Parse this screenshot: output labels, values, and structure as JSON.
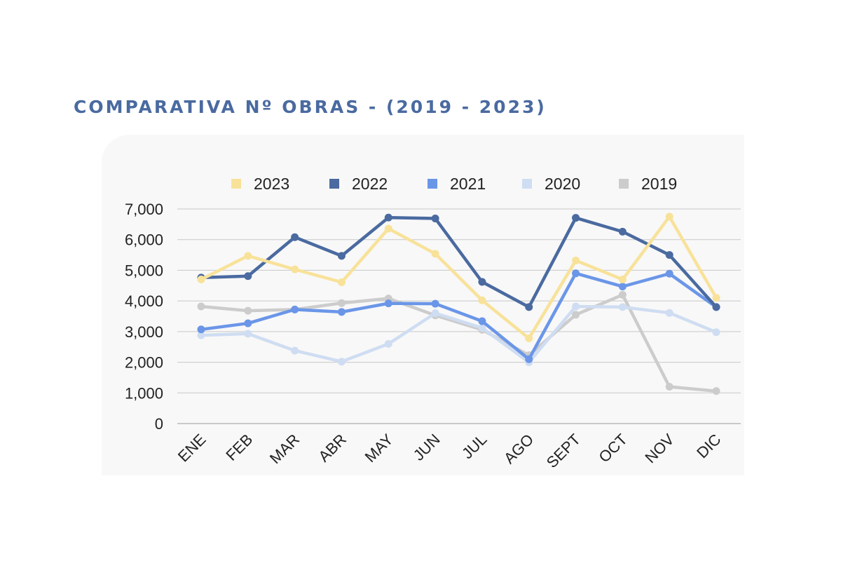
{
  "title": "COMPARATIVA Nº OBRAS - (2019 - 2023)",
  "chart_data": {
    "type": "line",
    "title": "COMPARATIVA Nº OBRAS - (2019 - 2023)",
    "categories": [
      "ENE",
      "FEB",
      "MAR",
      "ABR",
      "MAY",
      "JUN",
      "JUL",
      "AGO",
      "SEPT",
      "OCT",
      "NOV",
      "DIC"
    ],
    "ylim": [
      0,
      7000
    ],
    "yticks": [
      0,
      1000,
      2000,
      3000,
      4000,
      5000,
      6000,
      7000
    ],
    "ytick_labels": [
      "0",
      "1,000",
      "2,000",
      "3,000",
      "4,000",
      "5,000",
      "6,000",
      "7,000"
    ],
    "grid": true,
    "legend_position": "top",
    "series": [
      {
        "name": "2019",
        "color": "#cccccc",
        "values": [
          3820,
          3680,
          3720,
          3930,
          4080,
          3530,
          3060,
          2230,
          3550,
          4200,
          1200,
          1060
        ]
      },
      {
        "name": "2020",
        "color": "#cfddf2",
        "values": [
          2880,
          2930,
          2380,
          2020,
          2600,
          3600,
          3120,
          2000,
          3820,
          3800,
          3610,
          2980
        ]
      },
      {
        "name": "2021",
        "color": "#6b96e8",
        "values": [
          3070,
          3270,
          3720,
          3640,
          3920,
          3910,
          3340,
          2100,
          4900,
          4470,
          4890,
          3800
        ]
      },
      {
        "name": "2022",
        "color": "#4a6aa0",
        "values": [
          4760,
          4810,
          6080,
          5470,
          6720,
          6690,
          4620,
          3800,
          6710,
          6260,
          5500,
          3800
        ]
      },
      {
        "name": "2023",
        "color": "#f8e29a",
        "values": [
          4700,
          5470,
          5030,
          4610,
          6360,
          5540,
          4020,
          2780,
          5320,
          4700,
          6750,
          4100
        ]
      }
    ],
    "legend_order": [
      "2023",
      "2022",
      "2021",
      "2020",
      "2019"
    ]
  }
}
